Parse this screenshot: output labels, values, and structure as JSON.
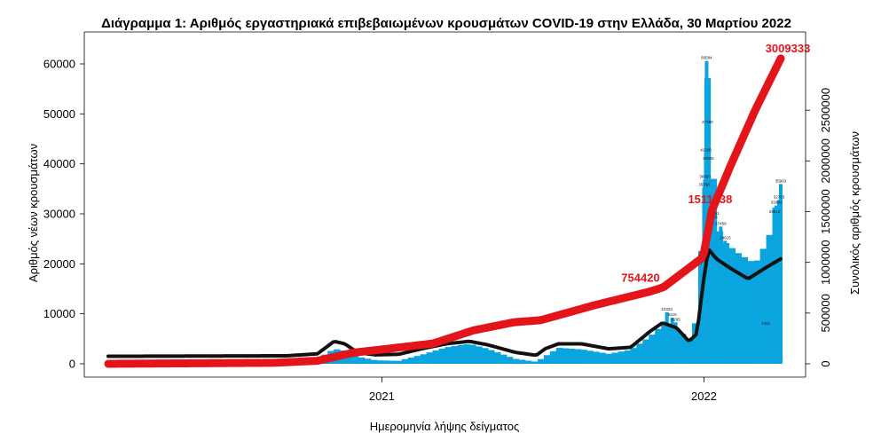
{
  "chart_data": {
    "type": "bar",
    "title": "Διάγραμμα 1: Αριθμός εργαστηριακά επιβεβαιωμένων κρουσμάτων COVID-19 στην Ελλάδα, 30 Μαρτίου 2022",
    "xlabel": "Ημερομηνία λήψης δείγματος",
    "ylabel_left": "Αριθμός νέων κρουσμάτων",
    "ylabel_right": "Συνολικός αριθμός κρουσμάτων",
    "x_ticks": [
      {
        "label": "2021",
        "date": "2021-01-01"
      },
      {
        "label": "2022",
        "date": "2022-01-01"
      }
    ],
    "y_left": {
      "lim": [
        0,
        62000
      ],
      "ticks": [
        "0",
        "10000",
        "20000",
        "30000",
        "40000",
        "50000",
        "60000"
      ]
    },
    "y_right": {
      "lim": [
        0,
        3100000
      ],
      "ticks": [
        "0",
        "500000",
        "1000000",
        "1500000",
        "2000000",
        "2500000"
      ]
    },
    "series": [
      {
        "name": "new_cases",
        "kind": "bar",
        "color": "#0aa5df",
        "anchors": [
          {
            "date": "2020-02-26",
            "value": 0
          },
          {
            "date": "2020-07-15",
            "value": 30
          },
          {
            "date": "2020-09-15",
            "value": 300
          },
          {
            "date": "2020-10-20",
            "value": 1000
          },
          {
            "date": "2020-11-08",
            "value": 3000
          },
          {
            "date": "2020-11-20",
            "value": 2600
          },
          {
            "date": "2020-12-05",
            "value": 1400
          },
          {
            "date": "2020-12-25",
            "value": 700
          },
          {
            "date": "2021-01-20",
            "value": 600
          },
          {
            "date": "2021-02-15",
            "value": 1800
          },
          {
            "date": "2021-03-15",
            "value": 3300
          },
          {
            "date": "2021-04-10",
            "value": 4000
          },
          {
            "date": "2021-05-01",
            "value": 3000
          },
          {
            "date": "2021-06-01",
            "value": 1000
          },
          {
            "date": "2021-06-25",
            "value": 400
          },
          {
            "date": "2021-07-05",
            "value": 1500
          },
          {
            "date": "2021-07-20",
            "value": 3200
          },
          {
            "date": "2021-08-15",
            "value": 2900
          },
          {
            "date": "2021-09-15",
            "value": 2000
          },
          {
            "date": "2021-10-10",
            "value": 2800
          },
          {
            "date": "2021-11-01",
            "value": 5500
          },
          {
            "date": "2021-11-15",
            "value": 7800
          },
          {
            "date": "2021-12-01",
            "value": 7000
          },
          {
            "date": "2021-12-15",
            "value": 5000
          },
          {
            "date": "2021-12-24",
            "value": 9000
          },
          {
            "date": "2021-12-31",
            "value": 28000
          },
          {
            "date": "2022-01-04",
            "value": 60584
          },
          {
            "date": "2022-01-10",
            "value": 40000
          },
          {
            "date": "2022-01-20",
            "value": 25000
          },
          {
            "date": "2022-02-10",
            "value": 22000
          },
          {
            "date": "2022-02-28",
            "value": 20000
          },
          {
            "date": "2022-03-15",
            "value": 25000
          },
          {
            "date": "2022-03-29",
            "value": 35963
          }
        ],
        "labels": [
          {
            "date": "2022-01-04",
            "value": 60584,
            "text": "60584"
          },
          {
            "date": "2022-01-05",
            "value": 47790,
            "text": "47790"
          },
          {
            "date": "2022-01-03",
            "value": 42200,
            "text": "42200"
          },
          {
            "date": "2022-01-06",
            "value": 40505,
            "text": "40505"
          },
          {
            "date": "2022-01-02",
            "value": 36850,
            "text": "36850"
          },
          {
            "date": "2022-01-01",
            "value": 35268,
            "text": "35268"
          },
          {
            "date": "2022-01-12",
            "value": 29451,
            "text": "29451"
          },
          {
            "date": "2022-01-10",
            "value": 28715,
            "text": "28715"
          },
          {
            "date": "2022-01-20",
            "value": 27459,
            "text": "27459"
          },
          {
            "date": "2022-03-29",
            "value": 35963,
            "text": "35963"
          },
          {
            "date": "2022-03-27",
            "value": 32763,
            "text": "32763"
          },
          {
            "date": "2022-03-24",
            "value": 31664,
            "text": "31664"
          },
          {
            "date": "2022-03-22",
            "value": 29812,
            "text": "29812"
          },
          {
            "date": "2022-01-25",
            "value": 24615,
            "text": "24615"
          },
          {
            "date": "2021-11-20",
            "value": 10323,
            "text": "10323"
          },
          {
            "date": "2021-11-26",
            "value": 9215,
            "text": "9215"
          },
          {
            "date": "2021-11-30",
            "value": 8295,
            "text": "8295"
          },
          {
            "date": "2022-03-12",
            "value": 7461,
            "text": "7461"
          }
        ]
      },
      {
        "name": "weekly_avg",
        "kind": "line",
        "color": "#111111",
        "anchors": [
          {
            "date": "2020-02-26",
            "value": 1500
          },
          {
            "date": "2020-09-15",
            "value": 1600
          },
          {
            "date": "2020-10-20",
            "value": 2000
          },
          {
            "date": "2020-11-08",
            "value": 4500
          },
          {
            "date": "2020-11-20",
            "value": 4000
          },
          {
            "date": "2020-12-05",
            "value": 2200
          },
          {
            "date": "2020-12-25",
            "value": 1800
          },
          {
            "date": "2021-01-20",
            "value": 1900
          },
          {
            "date": "2021-02-15",
            "value": 3000
          },
          {
            "date": "2021-03-15",
            "value": 4000
          },
          {
            "date": "2021-04-10",
            "value": 4500
          },
          {
            "date": "2021-05-01",
            "value": 3800
          },
          {
            "date": "2021-06-01",
            "value": 2300
          },
          {
            "date": "2021-06-25",
            "value": 1700
          },
          {
            "date": "2021-07-05",
            "value": 3000
          },
          {
            "date": "2021-07-20",
            "value": 4000
          },
          {
            "date": "2021-08-15",
            "value": 4000
          },
          {
            "date": "2021-09-15",
            "value": 3000
          },
          {
            "date": "2021-10-10",
            "value": 3300
          },
          {
            "date": "2021-11-01",
            "value": 6500
          },
          {
            "date": "2021-11-15",
            "value": 8200
          },
          {
            "date": "2021-12-01",
            "value": 7200
          },
          {
            "date": "2021-12-15",
            "value": 4500
          },
          {
            "date": "2021-12-24",
            "value": 6000
          },
          {
            "date": "2021-12-31",
            "value": 16000
          },
          {
            "date": "2022-01-06",
            "value": 23000
          },
          {
            "date": "2022-01-15",
            "value": 21000
          },
          {
            "date": "2022-02-01",
            "value": 19000
          },
          {
            "date": "2022-02-20",
            "value": 17000
          },
          {
            "date": "2022-03-10",
            "value": 19000
          },
          {
            "date": "2022-03-29",
            "value": 21000
          }
        ]
      },
      {
        "name": "cumulative_cases",
        "kind": "line",
        "color": "#e4141b",
        "axis": "right",
        "anchors": [
          {
            "date": "2020-02-26",
            "value": 0
          },
          {
            "date": "2020-09-01",
            "value": 10000
          },
          {
            "date": "2020-10-20",
            "value": 30000
          },
          {
            "date": "2020-11-30",
            "value": 110000
          },
          {
            "date": "2020-12-31",
            "value": 140000
          },
          {
            "date": "2021-02-28",
            "value": 200000
          },
          {
            "date": "2021-04-15",
            "value": 330000
          },
          {
            "date": "2021-05-31",
            "value": 410000
          },
          {
            "date": "2021-06-30",
            "value": 430000
          },
          {
            "date": "2021-08-31",
            "value": 580000
          },
          {
            "date": "2021-10-31",
            "value": 710000
          },
          {
            "date": "2021-11-16",
            "value": 754420
          },
          {
            "date": "2021-12-31",
            "value": 1050000
          },
          {
            "date": "2022-01-10",
            "value": 1511438
          },
          {
            "date": "2022-01-31",
            "value": 1950000
          },
          {
            "date": "2022-02-28",
            "value": 2500000
          },
          {
            "date": "2022-03-29",
            "value": 3009333
          }
        ],
        "labels": [
          {
            "date": "2021-11-16",
            "value": 754420,
            "text": "754420"
          },
          {
            "date": "2022-01-10",
            "value": 1511438,
            "text": "1511438"
          },
          {
            "date": "2022-03-29",
            "value": 3009333,
            "text": "3009333"
          }
        ]
      }
    ],
    "grid": false,
    "legend": "none"
  }
}
